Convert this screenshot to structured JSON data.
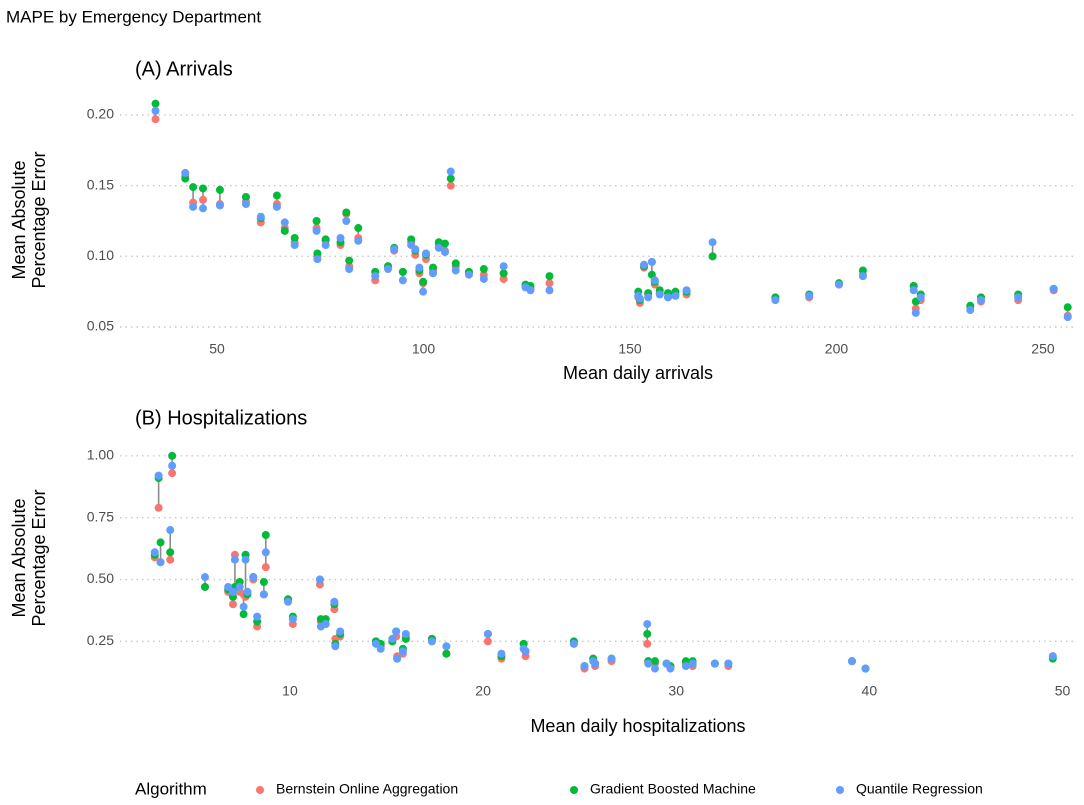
{
  "title": "MAPE by Emergency Department",
  "legend": {
    "title": "Algorithm"
  },
  "chart_data": [
    {
      "type": "scatter",
      "title": "(A) Arrivals",
      "xlabel": "Mean daily arrivals",
      "ylabel": "Mean Absolute\nPercentage Error",
      "x": [
        35.1,
        42.3,
        44.2,
        46.6,
        50.7,
        57.0,
        60.6,
        64.5,
        66.4,
        68.8,
        74.1,
        74.3,
        76.3,
        79.9,
        81.3,
        82.0,
        84.2,
        88.3,
        91.4,
        92.9,
        95.0,
        97.0,
        98.0,
        99.0,
        99.9,
        100.6,
        102.3,
        103.7,
        105.2,
        106.6,
        107.8,
        111.0,
        114.6,
        119.4,
        124.7,
        125.9,
        130.5,
        152.0,
        152.4,
        153.4,
        154.4,
        155.3,
        156.0,
        157.2,
        159.2,
        161.0,
        163.7,
        170.0,
        185.2,
        193.4,
        200.6,
        206.4,
        218.7,
        219.2,
        220.4,
        232.4,
        235.0,
        244.0,
        252.6,
        256.0
      ],
      "series": [
        {
          "name": "Bernstein Online Aggregation",
          "color": "#F8766D",
          "values": [
            0.197,
            0.157,
            0.138,
            0.14,
            0.137,
            0.139,
            0.124,
            0.137,
            0.12,
            0.11,
            0.12,
            0.1,
            0.111,
            0.108,
            0.13,
            0.093,
            0.113,
            0.083,
            0.093,
            0.104,
            0.089,
            0.11,
            0.101,
            0.088,
            0.081,
            0.098,
            0.09,
            0.108,
            0.104,
            0.15,
            0.093,
            0.088,
            0.087,
            0.084,
            0.079,
            0.077,
            0.081,
            0.071,
            0.067,
            0.092,
            0.073,
            0.096,
            0.08,
            0.074,
            0.071,
            0.073,
            0.073,
            0.1,
            0.07,
            0.071,
            0.08,
            0.087,
            0.079,
            0.063,
            0.069,
            0.064,
            0.068,
            0.069,
            0.076,
            0.058
          ]
        },
        {
          "name": "Gradient Boosted Machine",
          "color": "#00BA38",
          "values": [
            0.208,
            0.155,
            0.149,
            0.148,
            0.147,
            0.142,
            0.127,
            0.143,
            0.118,
            0.113,
            0.125,
            0.102,
            0.112,
            0.11,
            0.131,
            0.097,
            0.12,
            0.089,
            0.093,
            0.106,
            0.089,
            0.112,
            0.104,
            0.09,
            0.082,
            0.101,
            0.092,
            0.11,
            0.109,
            0.155,
            0.095,
            0.089,
            0.091,
            0.088,
            0.08,
            0.079,
            0.086,
            0.075,
            0.069,
            0.093,
            0.074,
            0.087,
            0.082,
            0.076,
            0.074,
            0.075,
            0.075,
            0.1,
            0.071,
            0.073,
            0.081,
            0.09,
            0.079,
            0.068,
            0.073,
            0.065,
            0.071,
            0.073,
            0.077,
            0.064
          ]
        },
        {
          "name": "Quantile Regression",
          "color": "#619CFF",
          "values": [
            0.203,
            0.159,
            0.135,
            0.134,
            0.136,
            0.137,
            0.128,
            0.135,
            0.124,
            0.108,
            0.118,
            0.098,
            0.108,
            0.113,
            0.125,
            0.091,
            0.111,
            0.086,
            0.091,
            0.105,
            0.083,
            0.108,
            0.105,
            0.092,
            0.075,
            0.102,
            0.088,
            0.106,
            0.103,
            0.16,
            0.09,
            0.087,
            0.084,
            0.093,
            0.078,
            0.076,
            0.076,
            0.072,
            0.07,
            0.094,
            0.071,
            0.096,
            0.083,
            0.073,
            0.071,
            0.072,
            0.076,
            0.11,
            0.069,
            0.072,
            0.08,
            0.086,
            0.076,
            0.06,
            0.071,
            0.062,
            0.069,
            0.071,
            0.077,
            0.057
          ]
        }
      ],
      "xlim": [
        26.5,
        258
      ],
      "ylim": [
        0.0408,
        0.2106
      ],
      "xticks": [
        50,
        100,
        150,
        200,
        250
      ],
      "yticks": [
        0.05,
        {
          "value": 0.1,
          "label": "0.10"
        },
        0.15,
        {
          "value": 0.2,
          "label": "0.20"
        }
      ],
      "grid": true
    },
    {
      "type": "scatter",
      "title": "(B) Hospitalizations",
      "xlabel": "Mean daily hospitalizations",
      "ylabel": "Mean Absolute\nPercentage Error",
      "x": [
        3.0,
        3.2,
        3.3,
        3.8,
        3.9,
        5.6,
        6.8,
        7.05,
        7.15,
        7.4,
        7.6,
        7.7,
        7.8,
        8.1,
        8.3,
        8.65,
        8.75,
        9.9,
        10.15,
        11.55,
        11.6,
        11.85,
        12.3,
        12.35,
        12.6,
        14.45,
        14.7,
        15.3,
        15.5,
        15.55,
        15.85,
        16.0,
        17.35,
        18.1,
        20.25,
        20.95,
        22.1,
        22.2,
        24.7,
        25.25,
        25.7,
        25.8,
        26.65,
        28.5,
        28.55,
        28.9,
        29.5,
        29.7,
        30.5,
        30.85,
        32.0,
        32.7,
        39.1,
        39.8,
        49.5
      ],
      "series": [
        {
          "values": [
            0.59,
            0.79,
            0.57,
            0.58,
            0.93,
            0.47,
            0.45,
            0.4,
            0.6,
            0.45,
            0.44,
            0.43,
            0.45,
            0.5,
            0.31,
            0.44,
            0.55,
            0.42,
            0.32,
            0.48,
            0.33,
            0.32,
            0.38,
            0.26,
            0.27,
            0.25,
            0.23,
            0.25,
            0.27,
            0.19,
            0.2,
            0.27,
            0.26,
            0.2,
            0.25,
            0.18,
            0.24,
            0.19,
            0.24,
            0.14,
            0.18,
            0.15,
            0.17,
            0.24,
            0.17,
            0.16,
            0.16,
            0.15,
            0.16,
            0.15,
            0.16,
            0.15,
            0.17,
            0.14,
            0.19
          ]
        },
        {
          "values": [
            0.6,
            0.91,
            0.65,
            0.61,
            1.0,
            0.47,
            0.46,
            0.43,
            0.47,
            0.49,
            0.36,
            0.6,
            0.44,
            0.51,
            0.33,
            0.49,
            0.68,
            0.42,
            0.35,
            0.5,
            0.34,
            0.34,
            0.4,
            0.24,
            0.28,
            0.25,
            0.24,
            0.25,
            0.29,
            0.18,
            0.22,
            0.26,
            0.26,
            0.2,
            0.28,
            0.19,
            0.24,
            0.21,
            0.25,
            0.15,
            0.18,
            0.16,
            0.18,
            0.28,
            0.17,
            0.17,
            0.16,
            0.15,
            0.17,
            0.17,
            0.16,
            0.16,
            0.17,
            0.14,
            0.18
          ]
        },
        {
          "values": [
            0.61,
            0.92,
            0.57,
            0.7,
            0.96,
            0.51,
            0.47,
            0.45,
            0.58,
            0.47,
            0.39,
            0.58,
            0.45,
            0.51,
            0.35,
            0.44,
            0.61,
            0.41,
            0.34,
            0.5,
            0.31,
            0.32,
            0.41,
            0.23,
            0.29,
            0.24,
            0.22,
            0.26,
            0.29,
            0.18,
            0.21,
            0.28,
            0.25,
            0.23,
            0.28,
            0.2,
            0.22,
            0.21,
            0.24,
            0.15,
            0.17,
            0.16,
            0.18,
            0.32,
            0.16,
            0.14,
            0.16,
            0.14,
            0.15,
            0.16,
            0.16,
            0.16,
            0.17,
            0.14,
            0.19
          ]
        }
      ],
      "xlim": [
        1.2,
        50.7
      ],
      "ylim": [
        0.114,
        1.06
      ],
      "xticks": [
        10,
        20,
        30,
        40,
        50
      ],
      "yticks": [
        0.25,
        {
          "value": 0.5,
          "label": "0.50"
        },
        0.75,
        {
          "value": 1,
          "label": "1.00"
        }
      ],
      "grid": true
    }
  ]
}
